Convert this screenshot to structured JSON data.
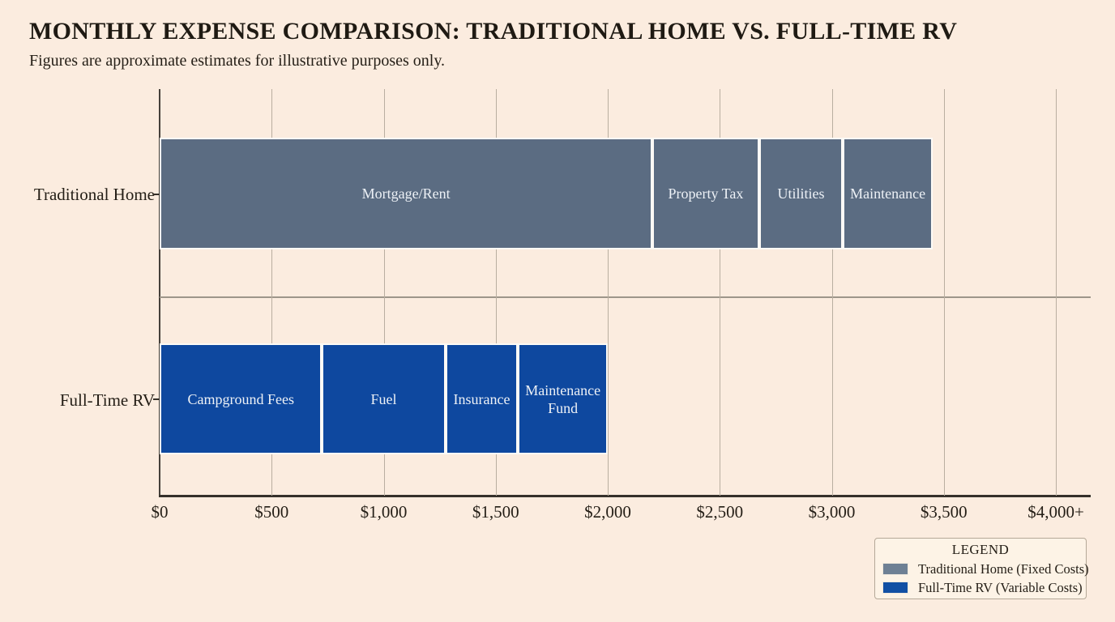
{
  "header": {
    "title": "MONTHLY EXPENSE COMPARISON: TRADITIONAL HOME VS. FULL-TIME RV",
    "subtitle": "Figures are approximate estimates for illustrative purposes only."
  },
  "colors": {
    "page_background": "#fbecdf",
    "traditional_home_bar": "#5b6c82",
    "full_time_rv_bar": "#0e489f",
    "segment_border": "#fcfaf6",
    "gridline": "#b9aea0",
    "axis_line": "#35302a"
  },
  "chart_data": {
    "type": "bar",
    "orientation": "horizontal",
    "stacked": true,
    "values_are_unlabeled_estimates_read_from_gridlines": true,
    "categories": [
      "Traditional Home",
      "Full-Time RV"
    ],
    "series": [
      {
        "name": "Traditional Home (Fixed Costs)",
        "color": "#5b6c82",
        "segments": [
          {
            "label": "Mortgage/Rent",
            "value": 2200
          },
          {
            "label": "Property Tax",
            "value": 475
          },
          {
            "label": "Utilities",
            "value": 375
          },
          {
            "label": "Maintenance",
            "value": 400
          }
        ],
        "total": 3450
      },
      {
        "name": "Full-Time RV (Variable Costs)",
        "color": "#0e489f",
        "segments": [
          {
            "label": "Campground Fees",
            "value": 725
          },
          {
            "label": "Fuel",
            "value": 550
          },
          {
            "label": "Insurance",
            "value": 325
          },
          {
            "label": "Maintenance Fund",
            "value": 400
          }
        ],
        "total": 2000
      }
    ],
    "x_axis": {
      "tick_labels": [
        "$0",
        "$500",
        "$1,000",
        "$1,500",
        "$2,000",
        "$2,500",
        "$3,000",
        "$3,500",
        "$4,000+"
      ],
      "tick_values": [
        0,
        500,
        1000,
        1500,
        2000,
        2500,
        3000,
        3500,
        4000
      ],
      "min": 0,
      "max": 4000,
      "grid": true
    },
    "legend": {
      "title": "LEGEND",
      "position": "bottom-right",
      "entries": [
        {
          "label": "Traditional Home (Fixed Costs)",
          "color": "#6e8094"
        },
        {
          "label": "Full-Time RV (Variable Costs)",
          "color": "#1150a4"
        }
      ]
    }
  }
}
